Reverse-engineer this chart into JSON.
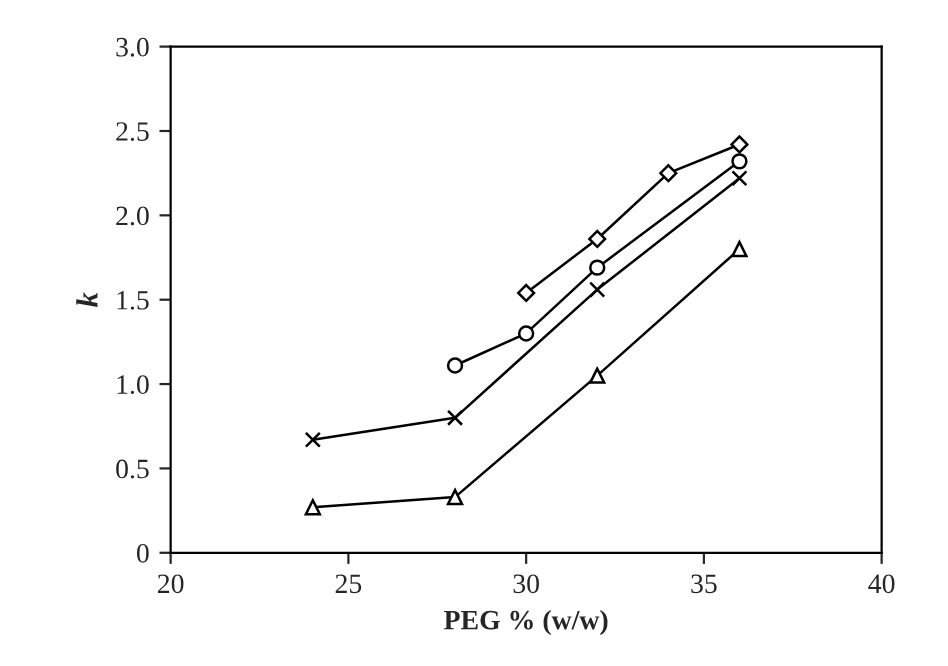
{
  "chart_data": {
    "type": "line",
    "xlabel": "PEG % (w/w)",
    "ylabel": "k",
    "xlim": [
      20,
      40
    ],
    "xticks": [
      20,
      25,
      30,
      35,
      40
    ],
    "ylim": [
      0,
      3.0
    ],
    "yticks": [
      0,
      {
        "value": 0.5,
        "label": "0.5"
      },
      {
        "value": 1.0,
        "label": "1.0"
      },
      {
        "value": 1.5,
        "label": "1.5"
      },
      {
        "value": 2.0,
        "label": "2.0"
      },
      {
        "value": 2.5,
        "label": "2.5"
      },
      {
        "value": 3.0,
        "label": "3.0"
      }
    ],
    "grid": false,
    "line_style": "solid",
    "series": [
      {
        "color": "#000000",
        "marker": "diamond",
        "x": [
          30,
          32,
          34,
          36
        ],
        "values": [
          1.54,
          1.86,
          2.25,
          2.42
        ]
      },
      {
        "color": "#000000",
        "marker": "circle",
        "x": [
          28,
          30,
          32,
          36
        ],
        "values": [
          1.11,
          1.3,
          1.69,
          2.32
        ]
      },
      {
        "color": "#000000",
        "marker": "cross",
        "x": [
          24,
          28,
          32,
          36
        ],
        "values": [
          0.67,
          0.8,
          1.56,
          2.22
        ]
      },
      {
        "color": "#000000",
        "marker": "triangle",
        "x": [
          24,
          28,
          32,
          36
        ],
        "values": [
          0.27,
          0.33,
          1.05,
          1.8
        ]
      }
    ]
  }
}
